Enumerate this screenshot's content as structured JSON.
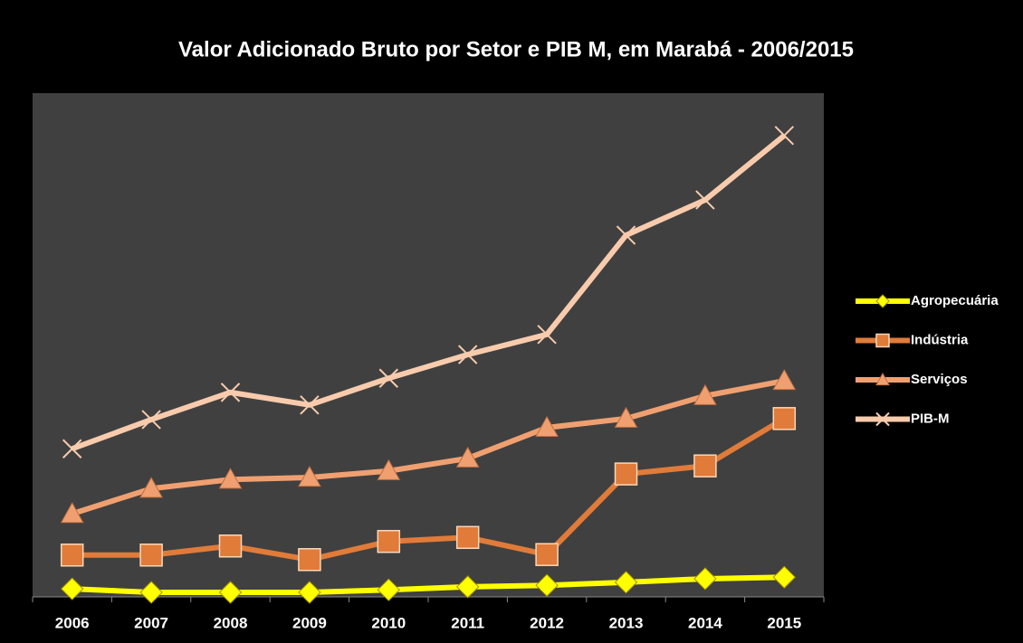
{
  "chart_data": {
    "type": "line",
    "title": "Valor Adicionado Bruto por Setor e PIB M, em Marabá - 2006/2015",
    "categories": [
      "2006",
      "2007",
      "2008",
      "2009",
      "2010",
      "2011",
      "2012",
      "2013",
      "2014",
      "2015"
    ],
    "series": [
      {
        "name": "Agropecuária",
        "color": "#ffff00",
        "marker": "diamond",
        "values": [
          1.6,
          0.9,
          0.9,
          0.9,
          1.4,
          2.0,
          2.3,
          2.9,
          3.6,
          3.9
        ]
      },
      {
        "name": "Indústria",
        "color": "#e07b39",
        "marker": "square",
        "values": [
          8.3,
          8.3,
          10.1,
          7.4,
          11.0,
          11.8,
          8.4,
          24.4,
          26.0,
          35.4
        ]
      },
      {
        "name": "Serviços",
        "color": "#f0a070",
        "marker": "triangle",
        "values": [
          16.5,
          21.5,
          23.3,
          23.7,
          25.0,
          27.5,
          33.6,
          35.4,
          39.9,
          42.9
        ]
      },
      {
        "name": "PIB-M",
        "color": "#f8cbad",
        "marker": "x",
        "values": [
          29.4,
          35.2,
          40.6,
          38.1,
          43.4,
          48.1,
          52.1,
          71.8,
          78.8,
          91.6
        ]
      }
    ],
    "ylim": [
      0,
      100
    ]
  }
}
